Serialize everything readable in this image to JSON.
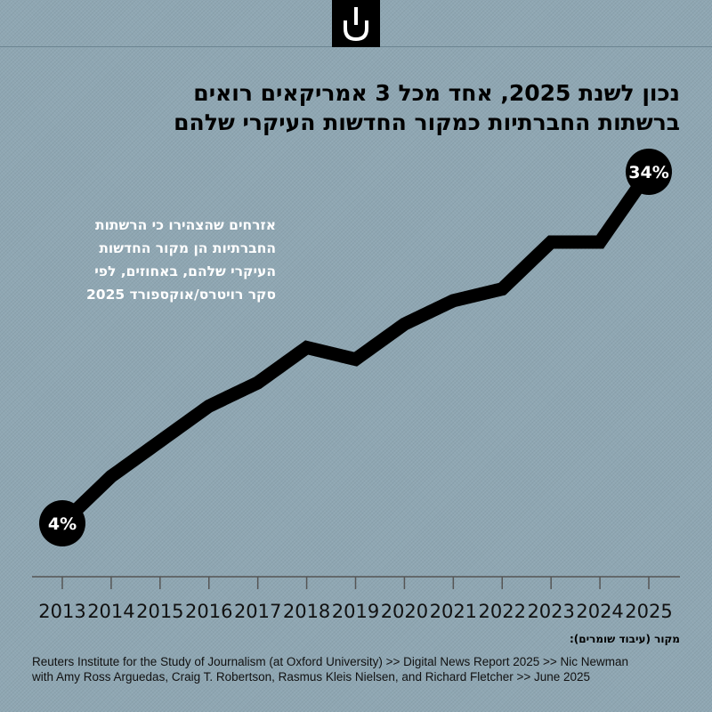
{
  "title_lines": [
    "נכון לשנת 2025, אחד מכל 3 אמריקאים רואים",
    "ברשתות החברתיות כמקור החדשות העיקרי שלהם"
  ],
  "annotation_lines": [
    "אזרחים שהצהירו כי הרשתות",
    "החברתיות הן מקור החדשות",
    "העיקרי שלהם, באחוזים, לפי",
    "סקר רויטרס/אוקספורד 2025"
  ],
  "source": {
    "heading": "מקור (עיבוד שומרים):",
    "lines": [
      "Reuters Institute for the Study of Journalism (at Oxford University) >> Digital News Report 2025 >> Nic Newman",
      "with Amy Ross Arguedas, Craig T. Robertson, Rasmus Kleis Nielsen, and Richard Fletcher >> June 2025"
    ]
  },
  "chart_data": {
    "type": "line",
    "title": "נכון לשנת 2025, אחד מכל 3 אמריקאים רואים ברשתות החברתיות כמקור החדשות העיקרי שלהם",
    "xlabel": "",
    "ylabel": "",
    "x": [
      2013,
      2014,
      2015,
      2016,
      2017,
      2018,
      2019,
      2020,
      2021,
      2022,
      2023,
      2024,
      2025
    ],
    "x_labels": [
      "2013",
      "2014",
      "2015",
      "2016",
      "2017",
      "2018",
      "2019",
      "2020",
      "2021",
      "2022",
      "2023",
      "2024",
      "2025"
    ],
    "values": [
      4,
      8,
      11,
      14,
      16,
      19,
      18,
      21,
      23,
      24,
      28,
      28,
      34
    ],
    "data_labels": [
      {
        "x": 2013,
        "text": "4%"
      },
      {
        "x": 2025,
        "text": "34%"
      }
    ],
    "ylim": [
      4,
      34
    ],
    "grid": false,
    "legend": "none",
    "colors": {
      "line": "#000000",
      "label_text": "#ffffff",
      "background": "#8fa7b3"
    }
  }
}
